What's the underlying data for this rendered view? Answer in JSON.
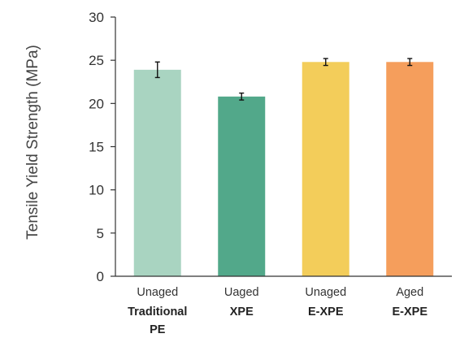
{
  "chart_data": {
    "type": "bar",
    "title": "",
    "xlabel": "",
    "ylabel": "Tensile Yield Strength (MPa)",
    "ylim": [
      0,
      30
    ],
    "yticks": [
      0,
      5,
      10,
      15,
      20,
      25,
      30
    ],
    "grid": false,
    "legend": "none",
    "categories": [
      {
        "top": "Unaged",
        "bottom": "Traditional PE"
      },
      {
        "top": "Uaged",
        "bottom": "XPE"
      },
      {
        "top": "Unaged",
        "bottom": "E-XPE"
      },
      {
        "top": "Aged",
        "bottom": "E-XPE"
      }
    ],
    "values": [
      23.9,
      20.8,
      24.8,
      24.8
    ],
    "errors": [
      0.9,
      0.4,
      0.4,
      0.4
    ],
    "colors": [
      "#a9d4c1",
      "#52a88a",
      "#f3cd5a",
      "#f59e5c"
    ]
  }
}
